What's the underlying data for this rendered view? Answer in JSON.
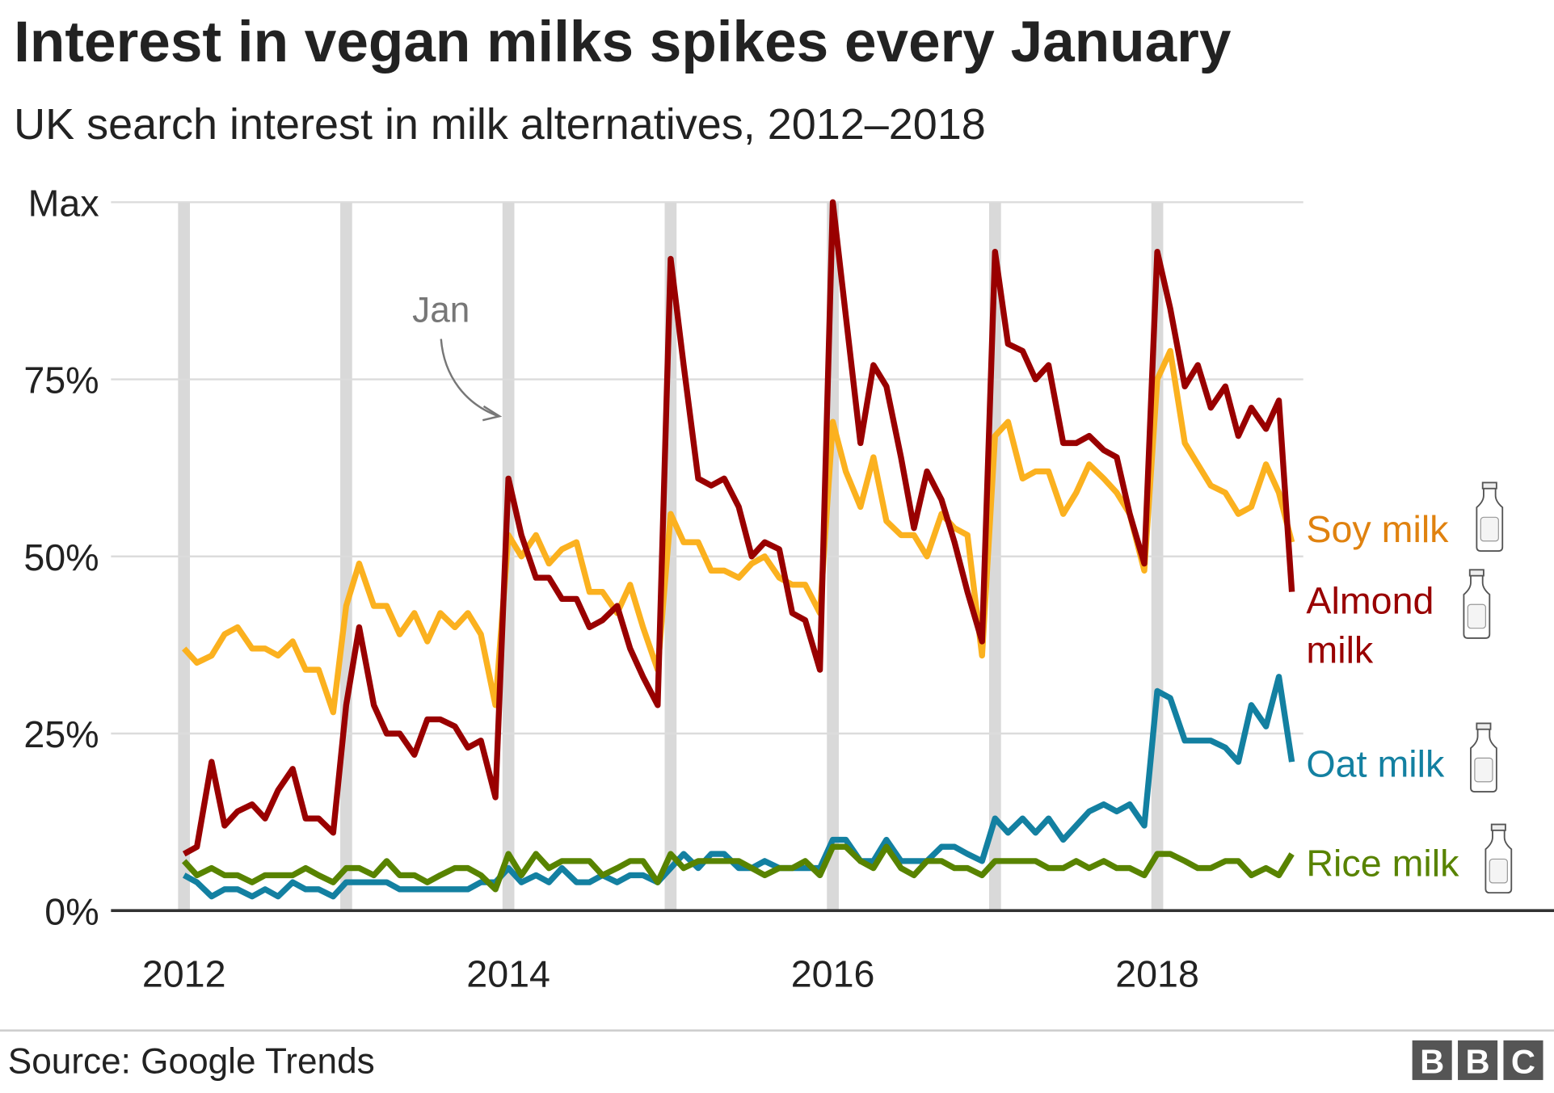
{
  "chart_data": {
    "type": "line",
    "title": "Interest in vegan milks spikes every January",
    "subtitle": "UK search interest in milk alternatives, 2012–2018",
    "source": "Source: Google Trends",
    "logo": [
      "B",
      "B",
      "C"
    ],
    "annotation": "Jan",
    "x": [
      2012,
      2012.08,
      2012.17,
      2012.25,
      2012.33,
      2012.42,
      2012.5,
      2012.58,
      2012.67,
      2012.75,
      2012.83,
      2012.92,
      2013,
      2013.08,
      2013.17,
      2013.25,
      2013.33,
      2013.42,
      2013.5,
      2013.58,
      2013.67,
      2013.75,
      2013.83,
      2013.92,
      2014,
      2014.08,
      2014.17,
      2014.25,
      2014.33,
      2014.42,
      2014.5,
      2014.58,
      2014.67,
      2014.75,
      2014.83,
      2014.92,
      2015,
      2015.08,
      2015.17,
      2015.25,
      2015.33,
      2015.42,
      2015.5,
      2015.58,
      2015.67,
      2015.75,
      2015.83,
      2015.92,
      2016,
      2016.08,
      2016.17,
      2016.25,
      2016.33,
      2016.42,
      2016.5,
      2016.58,
      2016.67,
      2016.75,
      2016.83,
      2016.92,
      2017,
      2017.08,
      2017.17,
      2017.25,
      2017.33,
      2017.42,
      2017.5,
      2017.58,
      2017.67,
      2017.75,
      2017.83,
      2017.92,
      2018,
      2018.08,
      2018.17,
      2018.25,
      2018.33,
      2018.42,
      2018.5,
      2018.58,
      2018.67,
      2018.75,
      2018.83
    ],
    "series": [
      {
        "name": "Soy milk",
        "color": "#fbb11f",
        "label_color": "#e0820f",
        "values": [
          37,
          35,
          36,
          39,
          40,
          37,
          37,
          36,
          38,
          34,
          34,
          28,
          43,
          49,
          43,
          43,
          39,
          42,
          38,
          42,
          40,
          42,
          39,
          29,
          53,
          50,
          53,
          49,
          51,
          52,
          45,
          45,
          42,
          46,
          40,
          34,
          56,
          52,
          52,
          48,
          48,
          47,
          49,
          50,
          47,
          46,
          46,
          42,
          69,
          62,
          57,
          64,
          55,
          53,
          53,
          50,
          56,
          54,
          53,
          36,
          67,
          69,
          61,
          62,
          62,
          56,
          59,
          63,
          61,
          59,
          56,
          48,
          75,
          79,
          66,
          63,
          60,
          59,
          56,
          57,
          63,
          59,
          52
        ]
      },
      {
        "name": "Almond milk",
        "color": "#990000",
        "label_color": "#990000",
        "values": [
          8,
          9,
          21,
          12,
          14,
          15,
          13,
          17,
          20,
          13,
          13,
          11,
          29,
          40,
          29,
          25,
          25,
          22,
          27,
          27,
          26,
          23,
          24,
          16,
          61,
          53,
          47,
          47,
          44,
          44,
          40,
          41,
          43,
          37,
          33,
          29,
          92,
          77,
          61,
          60,
          61,
          57,
          50,
          52,
          51,
          42,
          41,
          34,
          100,
          84,
          66,
          77,
          74,
          64,
          54,
          62,
          58,
          52,
          45,
          38,
          93,
          80,
          79,
          75,
          77,
          66,
          66,
          67,
          65,
          64,
          56,
          49,
          93,
          85,
          74,
          77,
          71,
          74,
          67,
          71,
          68,
          72,
          45
        ]
      },
      {
        "name": "Oat milk",
        "color": "#1380a1",
        "label_color": "#1380a1",
        "values": [
          5,
          4,
          2,
          3,
          3,
          2,
          3,
          2,
          4,
          3,
          3,
          2,
          4,
          4,
          4,
          4,
          3,
          3,
          3,
          3,
          3,
          3,
          4,
          4,
          6,
          4,
          5,
          4,
          6,
          4,
          4,
          5,
          4,
          5,
          5,
          4,
          6,
          8,
          6,
          8,
          8,
          6,
          6,
          7,
          6,
          6,
          6,
          6,
          10,
          10,
          7,
          7,
          10,
          7,
          7,
          7,
          9,
          9,
          8,
          7,
          13,
          11,
          13,
          11,
          13,
          10,
          12,
          14,
          15,
          14,
          15,
          12,
          31,
          30,
          24,
          24,
          24,
          23,
          21,
          29,
          26,
          33,
          21
        ]
      },
      {
        "name": "Rice milk",
        "color": "#588300",
        "label_color": "#588300",
        "values": [
          7,
          5,
          6,
          5,
          5,
          4,
          5,
          5,
          5,
          6,
          5,
          4,
          6,
          6,
          5,
          7,
          5,
          5,
          4,
          5,
          6,
          6,
          5,
          3,
          8,
          5,
          8,
          6,
          7,
          7,
          7,
          5,
          6,
          7,
          7,
          4,
          8,
          6,
          7,
          7,
          7,
          7,
          6,
          5,
          6,
          6,
          7,
          5,
          9,
          9,
          7,
          6,
          9,
          6,
          5,
          7,
          7,
          6,
          6,
          5,
          7,
          7,
          7,
          7,
          6,
          6,
          7,
          6,
          7,
          6,
          6,
          5,
          8,
          8,
          7,
          6,
          6,
          7,
          7,
          5,
          6,
          5,
          8
        ]
      }
    ],
    "jan_bands": [
      2012,
      2013,
      2014,
      2015,
      2016,
      2017,
      2018
    ],
    "xlim": [
      2011.55,
      2018.9
    ],
    "xticks": [
      2012,
      2014,
      2016,
      2018
    ],
    "ylim": [
      0,
      100
    ],
    "yticks": [
      {
        "value": 0,
        "label": "0%"
      },
      {
        "value": 25,
        "label": "25%"
      },
      {
        "value": 50,
        "label": "50%"
      },
      {
        "value": 75,
        "label": "75%"
      },
      {
        "value": 100,
        "label": "Max"
      }
    ],
    "grid": true
  }
}
